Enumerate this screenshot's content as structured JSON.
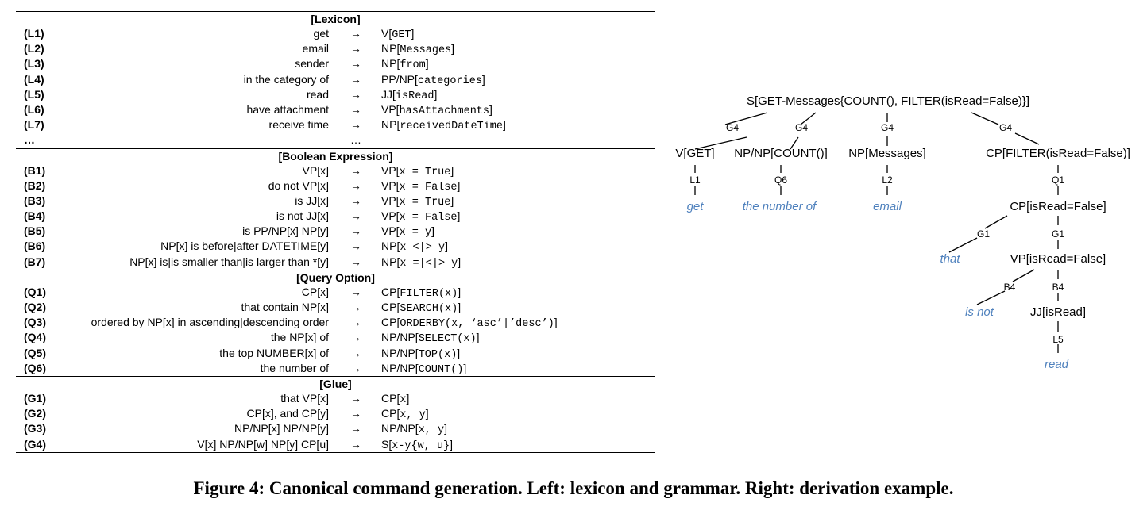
{
  "grammar": {
    "sections": [
      {
        "title": "[Lexicon]",
        "rows": [
          {
            "label": "(L1)",
            "lhs": "get",
            "rhs": "V[GET]"
          },
          {
            "label": "(L2)",
            "lhs": "email",
            "rhs": "NP[Messages]"
          },
          {
            "label": "(L3)",
            "lhs": "sender",
            "rhs": "NP[from]"
          },
          {
            "label": "(L4)",
            "lhs": "in the category of",
            "rhs": "PP/NP[categories]"
          },
          {
            "label": "(L5)",
            "lhs": "read",
            "rhs": "JJ[isRead]"
          },
          {
            "label": "(L6)",
            "lhs": "have attachment",
            "rhs": "VP[hasAttachments]"
          },
          {
            "label": "(L7)",
            "lhs": "receive time",
            "rhs": "NP[receivedDateTime]"
          },
          {
            "label": "…",
            "lhs": "",
            "arrow": "…",
            "rhs": ""
          }
        ]
      },
      {
        "title": "[Boolean Expression]",
        "rows": [
          {
            "label": "(B1)",
            "lhs": "VP[x]",
            "rhs": "VP[x = True]"
          },
          {
            "label": "(B2)",
            "lhs": "do not VP[x]",
            "rhs": "VP[x = False]"
          },
          {
            "label": "(B3)",
            "lhs": "is JJ[x]",
            "rhs": "VP[x = True]"
          },
          {
            "label": "(B4)",
            "lhs": "is not JJ[x]",
            "rhs": "VP[x = False]"
          },
          {
            "label": "(B5)",
            "lhs": "is PP/NP[x] NP[y]",
            "rhs": "VP[x = y]"
          },
          {
            "label": "(B6)",
            "lhs": "NP[x] is before|after DATETIME[y]",
            "rhs": "NP[x <|> y]"
          },
          {
            "label": "(B7)",
            "lhs": "NP[x] is|is smaller than|is larger than *[y]",
            "rhs": "NP[x =|<|> y]"
          }
        ]
      },
      {
        "title": "[Query Option]",
        "rows": [
          {
            "label": "(Q1)",
            "lhs": "CP[x]",
            "rhs": "CP[FILTER(x)]"
          },
          {
            "label": "(Q2)",
            "lhs": "that contain NP[x]",
            "rhs": "CP[SEARCH(x)]"
          },
          {
            "label": "(Q3)",
            "lhs": "ordered by NP[x] in ascending|descending order",
            "rhs": "CP[ORDERBY(x, ‘asc’|’desc’)]"
          },
          {
            "label": "(Q4)",
            "lhs": "the NP[x] of",
            "rhs": "NP/NP[SELECT(x)]"
          },
          {
            "label": "(Q5)",
            "lhs": "the top NUMBER[x] of",
            "rhs": "NP/NP[TOP(x)]"
          },
          {
            "label": "(Q6)",
            "lhs": "the number of",
            "rhs": "NP/NP[COUNT()]"
          }
        ]
      },
      {
        "title": "[Glue]",
        "rows": [
          {
            "label": "(G1)",
            "lhs": "that VP[x]",
            "rhs": "CP[x]"
          },
          {
            "label": "(G2)",
            "lhs": "CP[x], and CP[y]",
            "rhs": "CP[x, y]"
          },
          {
            "label": "(G3)",
            "lhs": "NP/NP[x] NP/NP[y]",
            "rhs": "NP/NP[x, y]"
          },
          {
            "label": "(G4)",
            "lhs": "V[x] NP/NP[w] NP[y] CP[u]",
            "rhs": "S[x-y{w, u}]"
          }
        ]
      }
    ],
    "arrow": "→"
  },
  "tree": {
    "root": "S[GET-Messages{COUNT(), FILTER(isRead=False)}]",
    "nodes": {
      "v_get": "V[GET]",
      "npnp_count": "NP/NP[COUNT()]",
      "np_messages": "NP[Messages]",
      "cp_filter": "CP[FILTER(isRead=False)]",
      "cp_isread": "CP[isRead=False]",
      "vp_isread": "VP[isRead=False]",
      "jj_isread": "JJ[isRead]"
    },
    "rule_labels": {
      "g4_a": "G4",
      "g4_b": "G4",
      "g4_c": "G4",
      "g4_d": "G4",
      "l1": "L1",
      "q6": "Q6",
      "l2": "L2",
      "q1": "Q1",
      "g1_a": "G1",
      "g1_b": "G1",
      "b4_a": "B4",
      "b4_b": "B4",
      "l5": "L5"
    },
    "words": {
      "get": "get",
      "the_number_of": "the number of",
      "email": "email",
      "that": "that",
      "is_not": "is not",
      "read": "read"
    },
    "word_color": "#4f81bd"
  },
  "caption": "Figure 4: Canonical command generation. Left: lexicon and grammar. Right: derivation example."
}
